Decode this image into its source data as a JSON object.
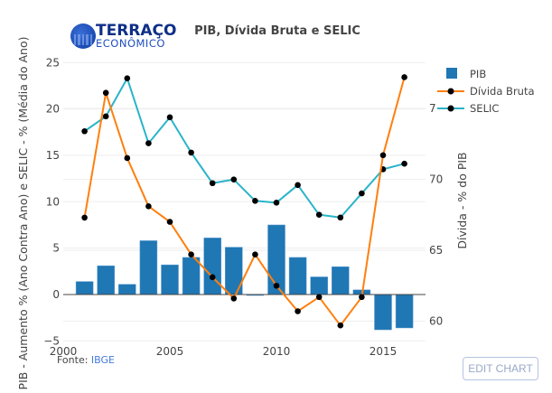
{
  "brand": {
    "line1": "TERRAÇO",
    "line2": "ECONÔMICO"
  },
  "footer": {
    "prefix": "Fonte: ",
    "link": "IBGE"
  },
  "edit_button": "EDIT CHART",
  "colors": {
    "pib": "#1f77b4",
    "divida": "#ff7f0e",
    "selic": "#2ab4c8",
    "marker": "#000000"
  },
  "chart_data": {
    "type": "bar+line",
    "title": "PIB, Dívida Bruta e SELIC",
    "xlabel": "",
    "ylabel_left": "PIB - Aumento % (Ano Contra Ano)  e SELIC - % (Média do Ano)",
    "ylabel_right": "Dívida - % do PIB",
    "x": [
      2001,
      2002,
      2003,
      2004,
      2005,
      2006,
      2007,
      2008,
      2009,
      2010,
      2011,
      2012,
      2013,
      2014,
      2015,
      2016
    ],
    "xlim": [
      2000,
      2017
    ],
    "x_ticks": [
      "2000",
      "2005",
      "2010",
      "2015"
    ],
    "ylim_left": [
      -5,
      25
    ],
    "y_ticks_left": [
      "−5",
      "0",
      "5",
      "10",
      "15",
      "20",
      "25"
    ],
    "ylim_right": [
      59.2,
      78.3
    ],
    "y_ticks_right": [
      "60",
      "65",
      "70",
      "7"
    ],
    "grid": true,
    "legend_position": "top-right",
    "series": [
      {
        "name": "PIB",
        "type": "bar",
        "axis": "left",
        "values": [
          1.4,
          3.1,
          1.1,
          5.8,
          3.2,
          4.0,
          6.1,
          5.1,
          -0.1,
          7.5,
          4.0,
          1.9,
          3.0,
          0.5,
          -3.8,
          -3.6
        ]
      },
      {
        "name": "Dívida Bruta",
        "type": "line",
        "axis": "right",
        "values": [
          67.3,
          76.1,
          71.5,
          68.1,
          67.0,
          64.7,
          63.1,
          61.6,
          64.7,
          62.5,
          60.7,
          61.7,
          59.7,
          61.7,
          71.7,
          77.2
        ]
      },
      {
        "name": "SELIC",
        "type": "line",
        "axis": "left",
        "values": [
          17.6,
          19.2,
          23.3,
          16.3,
          19.1,
          15.3,
          12.0,
          12.4,
          10.1,
          9.9,
          11.8,
          8.6,
          8.3,
          10.9,
          13.5,
          14.1
        ]
      }
    ]
  }
}
